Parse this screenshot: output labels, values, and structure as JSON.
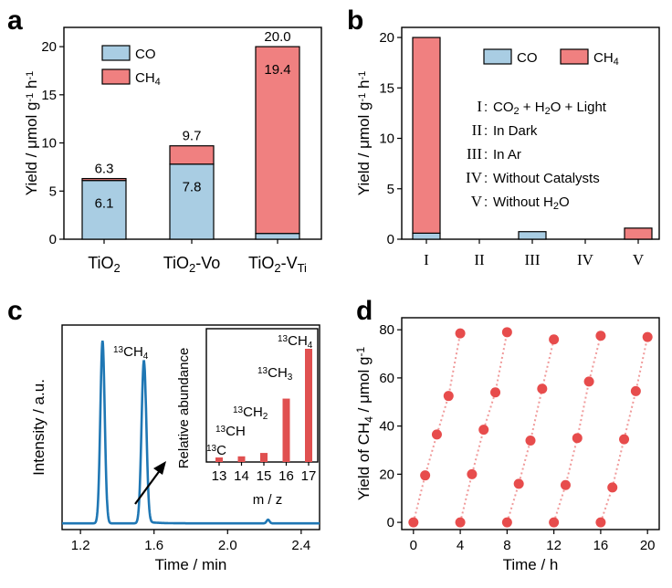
{
  "chart_data": [
    {
      "panel": "a",
      "type": "bar",
      "stacked": true,
      "categories": [
        "TiO2",
        "TiO2-Vo",
        "TiO2-VTi"
      ],
      "category_labels": [
        {
          "base": "TiO",
          "sub": "2",
          "suffix": "",
          "suffix_sub": ""
        },
        {
          "base": "TiO",
          "sub": "2",
          "suffix": "-Vo",
          "suffix_sub": ""
        },
        {
          "base": "TiO",
          "sub": "2",
          "suffix": "-V",
          "suffix_sub": "Ti"
        }
      ],
      "series": [
        {
          "name": "CO",
          "values": [
            6.1,
            7.8,
            0.6
          ],
          "color": "#a9cde3"
        },
        {
          "name": "CH4",
          "values": [
            0.2,
            1.9,
            19.4
          ],
          "color": "#f08080"
        }
      ],
      "totals": [
        "6.3",
        "9.7",
        "20.0"
      ],
      "inner_labels": [
        "6.1",
        "7.8",
        "19.4"
      ],
      "ylabel": "Yield / μmol g⁻¹ h⁻¹",
      "ylim": [
        0,
        22
      ],
      "yticks": [
        0,
        5,
        10,
        15,
        20
      ],
      "legend": [
        {
          "label": "CO",
          "sub": ""
        },
        {
          "label": "CH",
          "sub": "4"
        }
      ]
    },
    {
      "panel": "b",
      "type": "bar",
      "stacked": true,
      "categories": [
        "I",
        "II",
        "III",
        "IV",
        "V"
      ],
      "series": [
        {
          "name": "CO",
          "values": [
            0.6,
            0,
            0.75,
            0,
            0
          ],
          "color": "#a9cde3"
        },
        {
          "name": "CH4",
          "values": [
            19.4,
            0,
            0,
            0,
            1.1
          ],
          "color": "#f08080"
        }
      ],
      "ylabel": "Yield / μmol g⁻¹ h⁻¹",
      "ylim": [
        0,
        21
      ],
      "yticks": [
        0,
        5,
        10,
        15,
        20
      ],
      "legend": [
        {
          "label": "CO",
          "sub": ""
        },
        {
          "label": "CH",
          "sub": "4"
        }
      ],
      "conditions": [
        {
          "num": "I",
          "parts": [
            {
              "t": "CO"
            },
            {
              "t": "2",
              "sub": true
            },
            {
              "t": " + H"
            },
            {
              "t": "2",
              "sub": true
            },
            {
              "t": "O + Light"
            }
          ]
        },
        {
          "num": "II",
          "parts": [
            {
              "t": "In Dark"
            }
          ]
        },
        {
          "num": "III",
          "parts": [
            {
              "t": "In Ar"
            }
          ]
        },
        {
          "num": "IV",
          "parts": [
            {
              "t": "Without Catalysts"
            }
          ]
        },
        {
          "num": "V",
          "parts": [
            {
              "t": "Without H"
            },
            {
              "t": "2",
              "sub": true
            },
            {
              "t": "O"
            }
          ]
        }
      ]
    },
    {
      "panel": "c",
      "type": "line",
      "xlabel": "Time / min",
      "ylabel": "Intensity / a.u.",
      "xlim": [
        1.1,
        2.5
      ],
      "xticks": [
        "1.2",
        "1.6",
        "2.0",
        "2.4"
      ],
      "peaks": [
        {
          "x": 1.32,
          "height": 1.0,
          "width": 0.012
        },
        {
          "x": 1.545,
          "height": 0.89,
          "width": 0.013
        },
        {
          "x": 2.22,
          "height": 0.02,
          "width": 0.008
        }
      ],
      "peak_label": {
        "pre": "13",
        "main": "CH",
        "sub": "4"
      },
      "inset": {
        "type": "bar",
        "categories": [
          "13",
          "14",
          "15",
          "16",
          "17"
        ],
        "values": [
          0.04,
          0.05,
          0.08,
          0.56,
          1.0
        ],
        "xlabel": "m / z",
        "ylabel": "Relative abundance",
        "labels": [
          {
            "pre": "13",
            "main": "C",
            "sub": ""
          },
          {
            "pre": "13",
            "main": "CH",
            "sub": ""
          },
          {
            "pre": "13",
            "main": "CH",
            "sub": "2"
          },
          {
            "pre": "13",
            "main": "CH",
            "sub": "3"
          },
          {
            "pre": "13",
            "main": "CH",
            "sub": "4"
          }
        ]
      }
    },
    {
      "panel": "d",
      "type": "scatter",
      "xlabel": "Time / h",
      "ylabel": "Yield of CH4 / μmol g⁻¹",
      "ylabel_parts": [
        {
          "t": "Yield of CH"
        },
        {
          "t": "4",
          "sub": true
        },
        {
          "t": " / μmol g"
        },
        {
          "t": "-1",
          "sup": true
        }
      ],
      "xlim": [
        -1,
        21
      ],
      "ylim": [
        -3,
        85
      ],
      "xticks": [
        0,
        4,
        8,
        12,
        16,
        20
      ],
      "yticks": [
        0,
        20,
        40,
        60,
        80
      ],
      "cycles": [
        [
          [
            0,
            0
          ],
          [
            1,
            19.5
          ],
          [
            2,
            36.5
          ],
          [
            3,
            52.5
          ],
          [
            4,
            78.5
          ]
        ],
        [
          [
            4,
            0
          ],
          [
            5,
            20
          ],
          [
            6,
            38.5
          ],
          [
            7,
            54
          ],
          [
            8,
            79
          ]
        ],
        [
          [
            8,
            0
          ],
          [
            9,
            16
          ],
          [
            10,
            34
          ],
          [
            11,
            55.5
          ],
          [
            12,
            76
          ]
        ],
        [
          [
            12,
            0
          ],
          [
            13,
            15.5
          ],
          [
            14,
            35
          ],
          [
            15,
            58.5
          ],
          [
            16,
            77.5
          ]
        ],
        [
          [
            16,
            0
          ],
          [
            17,
            14.5
          ],
          [
            18,
            34.5
          ],
          [
            19,
            54.5
          ],
          [
            20,
            77
          ]
        ]
      ],
      "color": "#e74c4c"
    }
  ],
  "panel_labels": [
    "a",
    "b",
    "c",
    "d"
  ]
}
